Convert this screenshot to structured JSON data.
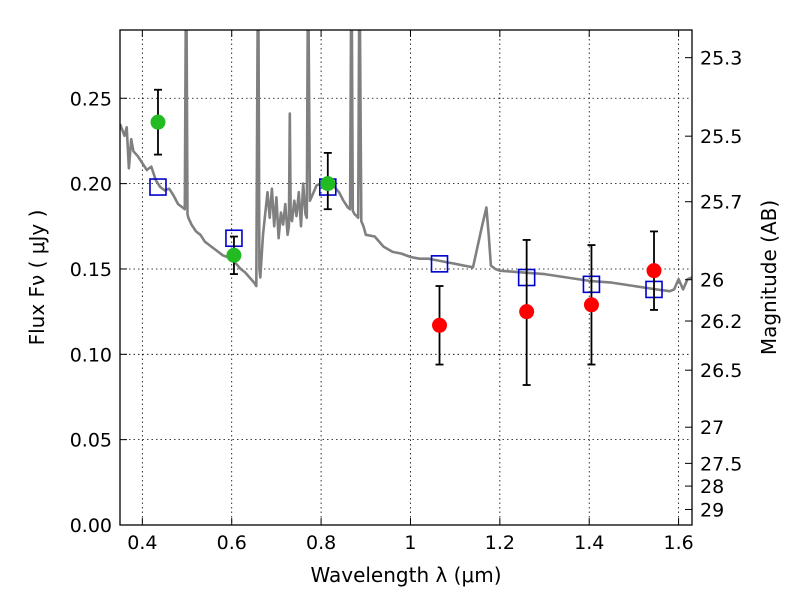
{
  "chart_data": {
    "type": "scatter",
    "xlabel": "Wavelength  λ (μm)",
    "ylabel": "Flux  Fν  ( μJy )",
    "y2label": "Magnitude (AB)",
    "xlim": [
      0.35,
      1.63
    ],
    "ylim": [
      0.0,
      0.29
    ],
    "grid": true,
    "grid_style": "dotted",
    "x_ticks": [
      0.4,
      0.6,
      0.8,
      1.0,
      1.2,
      1.4,
      1.6
    ],
    "x_tick_labels": [
      "0.4",
      "0.6",
      "0.8",
      "1",
      "1.2",
      "1.4",
      "1.6"
    ],
    "y_ticks": [
      0.0,
      0.05,
      0.1,
      0.15,
      0.2,
      0.25
    ],
    "y_tick_labels": [
      "0.00",
      "0.05",
      "0.10",
      "0.15",
      "0.20",
      "0.25"
    ],
    "y2_ticks": [
      {
        "label": "25.3",
        "flux": 0.2738
      },
      {
        "label": "25.5",
        "flux": 0.2278
      },
      {
        "label": "25.7",
        "flux": 0.1894
      },
      {
        "label": "26",
        "flux": 0.1437
      },
      {
        "label": "26.2",
        "flux": 0.1195
      },
      {
        "label": "26.5",
        "flux": 0.0907
      },
      {
        "label": "27",
        "flux": 0.0573
      },
      {
        "label": "27.5",
        "flux": 0.0361
      },
      {
        "label": "28",
        "flux": 0.0228
      },
      {
        "label": "29",
        "flux": 0.0091
      }
    ],
    "series": [
      {
        "kind": "line",
        "color": "#808080",
        "x": [
          0.35,
          0.36,
          0.365,
          0.37,
          0.375,
          0.38,
          0.39,
          0.4,
          0.41,
          0.42,
          0.43,
          0.44,
          0.45,
          0.46,
          0.47,
          0.48,
          0.49,
          0.495,
          0.497,
          0.499,
          0.501,
          0.503,
          0.51,
          0.52,
          0.53,
          0.54,
          0.55,
          0.56,
          0.57,
          0.58,
          0.59,
          0.6,
          0.61,
          0.62,
          0.63,
          0.64,
          0.65,
          0.655,
          0.658,
          0.66,
          0.662,
          0.664,
          0.67,
          0.68,
          0.685,
          0.69,
          0.695,
          0.7,
          0.705,
          0.71,
          0.715,
          0.72,
          0.725,
          0.728,
          0.73,
          0.732,
          0.735,
          0.74,
          0.745,
          0.75,
          0.755,
          0.76,
          0.765,
          0.768,
          0.77,
          0.772,
          0.775,
          0.78,
          0.79,
          0.8,
          0.81,
          0.82,
          0.83,
          0.84,
          0.85,
          0.86,
          0.865,
          0.867,
          0.869,
          0.871,
          0.875,
          0.88,
          0.883,
          0.885,
          0.887,
          0.89,
          0.895,
          0.9,
          0.92,
          0.94,
          0.96,
          0.98,
          1.0,
          1.02,
          1.04,
          1.06,
          1.08,
          1.1,
          1.12,
          1.14,
          1.15,
          1.16,
          1.17,
          1.175,
          1.18,
          1.19,
          1.2,
          1.25,
          1.3,
          1.35,
          1.4,
          1.45,
          1.5,
          1.55,
          1.58,
          1.59,
          1.6,
          1.61,
          1.62,
          1.63
        ],
        "y": [
          0.235,
          0.228,
          0.233,
          0.209,
          0.226,
          0.219,
          0.216,
          0.212,
          0.208,
          0.21,
          0.202,
          0.198,
          0.196,
          0.197,
          0.193,
          0.188,
          0.186,
          0.185,
          0.29,
          0.29,
          0.182,
          0.18,
          0.176,
          0.172,
          0.17,
          0.166,
          0.164,
          0.162,
          0.16,
          0.158,
          0.157,
          0.155,
          0.153,
          0.15,
          0.148,
          0.145,
          0.142,
          0.14,
          0.29,
          0.29,
          0.15,
          0.145,
          0.17,
          0.195,
          0.18,
          0.197,
          0.175,
          0.192,
          0.168,
          0.183,
          0.176,
          0.188,
          0.17,
          0.175,
          0.241,
          0.18,
          0.178,
          0.19,
          0.181,
          0.195,
          0.175,
          0.2,
          0.182,
          0.18,
          0.29,
          0.29,
          0.19,
          0.193,
          0.199,
          0.2,
          0.2,
          0.199,
          0.198,
          0.195,
          0.19,
          0.186,
          0.185,
          0.29,
          0.29,
          0.184,
          0.182,
          0.181,
          0.18,
          0.29,
          0.29,
          0.178,
          0.175,
          0.17,
          0.169,
          0.163,
          0.16,
          0.159,
          0.157,
          0.156,
          0.156,
          0.155,
          0.154,
          0.153,
          0.152,
          0.151,
          0.163,
          0.175,
          0.186,
          0.17,
          0.152,
          0.15,
          0.149,
          0.148,
          0.147,
          0.145,
          0.143,
          0.142,
          0.14,
          0.138,
          0.137,
          0.138,
          0.144,
          0.138,
          0.144,
          0.145
        ]
      },
      {
        "kind": "squares",
        "color": "#0000cc",
        "x": [
          0.435,
          0.605,
          0.815,
          1.065,
          1.26,
          1.405,
          1.545
        ],
        "y": [
          0.198,
          0.168,
          0.198,
          0.153,
          0.145,
          0.141,
          0.138
        ]
      },
      {
        "kind": "points",
        "color": "#22bb22",
        "x": [
          0.435,
          0.605,
          0.815
        ],
        "y": [
          0.236,
          0.158,
          0.2
        ],
        "err_low": [
          0.019,
          0.011,
          0.015
        ],
        "err_high": [
          0.019,
          0.011,
          0.018
        ]
      },
      {
        "kind": "points",
        "color": "#ff0000",
        "x": [
          1.065,
          1.26,
          1.405,
          1.545
        ],
        "y": [
          0.117,
          0.125,
          0.129,
          0.149
        ],
        "err_low": [
          0.023,
          0.043,
          0.035,
          0.023
        ],
        "err_high": [
          0.023,
          0.042,
          0.035,
          0.023
        ]
      }
    ]
  }
}
